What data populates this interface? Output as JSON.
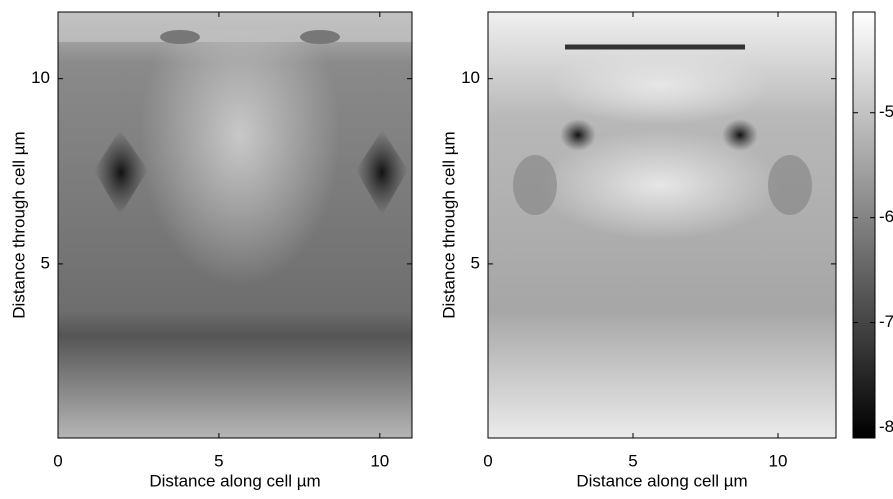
{
  "chart_data": [
    {
      "type": "heatmap",
      "xlabel": "Distance along cell µm",
      "ylabel": "Distance through cell µm",
      "xlim": [
        0,
        11
      ],
      "ylim": [
        0.3,
        11.8
      ],
      "xticks": [
        0,
        5,
        10
      ],
      "yticks": [
        5,
        10
      ]
    },
    {
      "type": "heatmap",
      "xlabel": "Distance along cell µm",
      "ylabel": "Distance through cell µm",
      "xlim": [
        0,
        12
      ],
      "ylim": [
        0.3,
        11.8
      ],
      "xticks": [
        0,
        5,
        10
      ],
      "yticks": [
        5,
        10
      ]
    },
    {
      "type": "colorbar",
      "ylim": [
        -8.1,
        -4.04
      ],
      "yticks": [
        -5,
        -6,
        -7,
        -8
      ]
    }
  ]
}
